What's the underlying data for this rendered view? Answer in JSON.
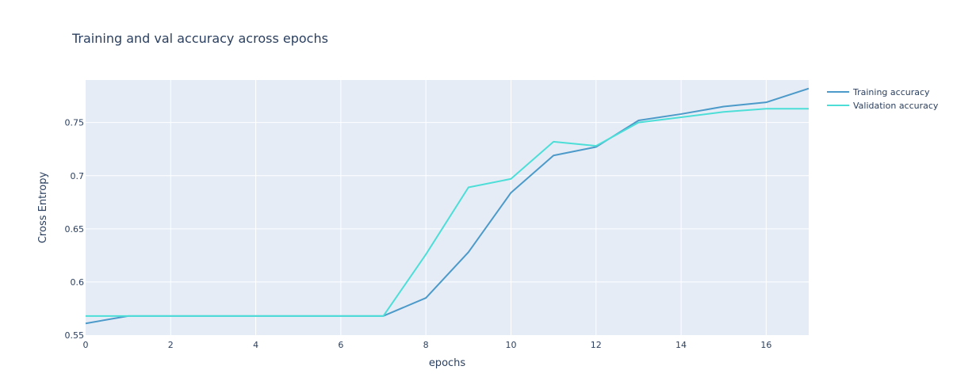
{
  "chart_data": {
    "type": "line",
    "title": "Training and val accuracy across epochs",
    "xlabel": "epochs",
    "ylabel": "Cross Entropy",
    "xlim": [
      0,
      17
    ],
    "ylim": [
      0.55,
      0.79
    ],
    "x_ticks": [
      0,
      2,
      4,
      6,
      8,
      10,
      12,
      14,
      16
    ],
    "x_tick_labels": [
      "0",
      "2",
      "4",
      "6",
      "8",
      "10",
      "12",
      "14",
      "16"
    ],
    "y_ticks": [
      0.55,
      0.6,
      0.65,
      0.7,
      0.75
    ],
    "y_tick_labels": [
      "0.55",
      "0.6",
      "0.65",
      "0.7",
      "0.75"
    ],
    "grid": true,
    "legend_position": "top-right, outside plot area",
    "x": [
      0,
      1,
      2,
      3,
      4,
      5,
      6,
      7,
      8,
      9,
      10,
      11,
      12,
      13,
      14,
      15,
      16,
      17
    ],
    "series": [
      {
        "name": "Training accuracy",
        "color": "#4c9ac9",
        "values": [
          0.561,
          0.568,
          0.568,
          0.568,
          0.568,
          0.568,
          0.568,
          0.568,
          0.585,
          0.628,
          0.684,
          0.719,
          0.727,
          0.752,
          0.758,
          0.765,
          0.769,
          0.782
        ]
      },
      {
        "name": "Validation accuracy",
        "color": "#4dded8",
        "values": [
          0.568,
          0.568,
          0.568,
          0.568,
          0.568,
          0.568,
          0.568,
          0.568,
          0.626,
          0.689,
          0.697,
          0.732,
          0.728,
          0.75,
          0.755,
          0.76,
          0.763,
          0.763
        ]
      }
    ]
  },
  "colors": {
    "plot_background": "#e5ecf6",
    "gridline": "#ffffff",
    "text": "#2a3f5f"
  }
}
